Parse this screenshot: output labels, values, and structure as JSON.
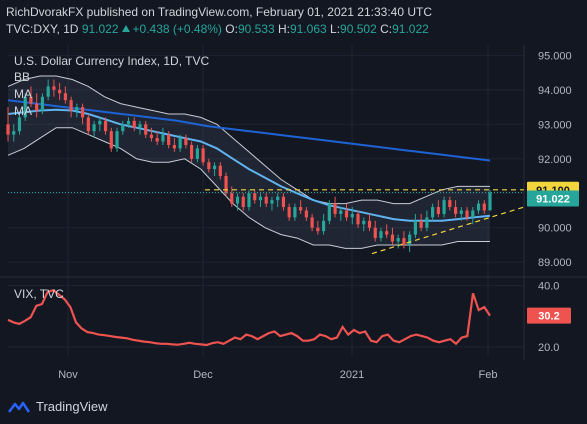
{
  "header": {
    "line1": "RichDvorakFX published on TradingView.com, February 01, 2021 21:33:40 UTC",
    "symbol": "TVC:DXY, 1D",
    "last": "91.022",
    "change": "+0.438 (+0.48%)",
    "o_label": "O:",
    "o": "90.533",
    "h_label": "H:",
    "h": "91.063",
    "l_label": "L:",
    "l": "90.502",
    "c_label": "C:",
    "c": "91.022"
  },
  "chart_title": "U.S. Dollar Currency Index, 1D, TVC",
  "legend": [
    "BB",
    "MA",
    "MA"
  ],
  "vix_title": "VIX, TVC",
  "brand": "TradingView",
  "colors": {
    "background": "#131722",
    "up": "#26a69a",
    "down": "#ef5350",
    "ma_short": "#5fb3f0",
    "ma_long": "#1e63d6",
    "bands": "#c8ccd6",
    "vix": "#ef5350",
    "resistance": "#f2d43c"
  },
  "chart_data": [
    {
      "type": "candlestick",
      "title": "U.S. Dollar Currency Index, 1D, TVC",
      "x_ticks": [
        "Nov",
        "Dec",
        "2021",
        "Feb"
      ],
      "y_ticks": [
        "95.000",
        "94.000",
        "93.000",
        "92.000",
        "91.000",
        "90.000",
        "89.000"
      ],
      "ylim": [
        88.6,
        95.3
      ],
      "last_price_label": "91.022",
      "resistance_label": "91.100",
      "resistance": 91.1,
      "support_trendline": [
        [
          0.0,
          89.25
        ],
        [
          1.0,
          90.6
        ]
      ],
      "candles": [
        [
          93.0,
          93.5,
          92.5,
          92.7
        ],
        [
          92.7,
          93.0,
          92.5,
          92.8
        ],
        [
          92.8,
          93.3,
          92.7,
          93.2
        ],
        [
          93.2,
          93.9,
          93.1,
          93.8
        ],
        [
          93.8,
          94.1,
          93.5,
          93.6
        ],
        [
          93.6,
          93.9,
          93.2,
          93.4
        ],
        [
          93.4,
          93.9,
          93.3,
          93.8
        ],
        [
          93.8,
          94.3,
          93.7,
          94.1
        ],
        [
          94.1,
          94.3,
          93.8,
          94.0
        ],
        [
          94.0,
          94.2,
          93.7,
          93.9
        ],
        [
          93.9,
          94.1,
          93.6,
          93.7
        ],
        [
          93.7,
          93.8,
          93.2,
          93.4
        ],
        [
          93.4,
          93.6,
          93.2,
          93.5
        ],
        [
          93.5,
          93.6,
          93.0,
          93.2
        ],
        [
          93.2,
          93.3,
          92.7,
          92.8
        ],
        [
          92.8,
          93.1,
          92.6,
          93.0
        ],
        [
          93.0,
          93.2,
          92.8,
          93.1
        ],
        [
          93.1,
          93.2,
          92.7,
          92.8
        ],
        [
          92.8,
          92.9,
          92.2,
          92.3
        ],
        [
          92.3,
          92.9,
          92.2,
          92.8
        ],
        [
          92.8,
          93.1,
          92.7,
          93.0
        ],
        [
          93.0,
          93.2,
          92.9,
          93.1
        ],
        [
          93.1,
          93.2,
          92.8,
          92.9
        ],
        [
          92.9,
          93.1,
          92.7,
          93.0
        ],
        [
          93.0,
          93.1,
          92.6,
          92.7
        ],
        [
          92.7,
          92.9,
          92.5,
          92.6
        ],
        [
          92.6,
          92.8,
          92.4,
          92.5
        ],
        [
          92.5,
          92.9,
          92.4,
          92.7
        ],
        [
          92.7,
          92.8,
          92.3,
          92.4
        ],
        [
          92.4,
          92.6,
          92.2,
          92.3
        ],
        [
          92.3,
          92.7,
          92.2,
          92.6
        ],
        [
          92.6,
          92.7,
          92.3,
          92.4
        ],
        [
          92.4,
          92.5,
          91.9,
          92.0
        ],
        [
          92.0,
          92.4,
          91.9,
          92.3
        ],
        [
          92.3,
          92.4,
          91.8,
          91.9
        ],
        [
          91.9,
          92.0,
          91.6,
          91.7
        ],
        [
          91.7,
          91.9,
          91.5,
          91.8
        ],
        [
          91.8,
          91.9,
          91.4,
          91.5
        ],
        [
          91.5,
          91.6,
          90.9,
          91.0
        ],
        [
          91.0,
          91.2,
          90.6,
          90.7
        ],
        [
          90.7,
          91.0,
          90.5,
          90.9
        ],
        [
          90.9,
          91.0,
          90.5,
          90.6
        ],
        [
          90.6,
          91.1,
          90.5,
          91.0
        ],
        [
          91.0,
          91.1,
          90.7,
          90.8
        ],
        [
          90.8,
          91.0,
          90.6,
          90.9
        ],
        [
          90.9,
          91.0,
          90.6,
          90.7
        ],
        [
          90.7,
          90.9,
          90.5,
          90.8
        ],
        [
          90.8,
          91.0,
          90.6,
          90.9
        ],
        [
          90.9,
          91.0,
          90.5,
          90.6
        ],
        [
          90.6,
          90.7,
          90.2,
          90.3
        ],
        [
          90.3,
          90.7,
          90.2,
          90.6
        ],
        [
          90.6,
          90.8,
          90.4,
          90.5
        ],
        [
          90.5,
          90.6,
          90.2,
          90.3
        ],
        [
          90.3,
          90.4,
          89.9,
          90.0
        ],
        [
          90.0,
          90.2,
          89.8,
          89.9
        ],
        [
          89.9,
          90.4,
          89.8,
          90.2
        ],
        [
          90.2,
          90.8,
          90.1,
          90.7
        ],
        [
          90.7,
          90.9,
          90.3,
          90.4
        ],
        [
          90.4,
          90.6,
          90.2,
          90.5
        ],
        [
          90.5,
          90.7,
          90.2,
          90.3
        ],
        [
          90.3,
          90.6,
          90.1,
          90.4
        ],
        [
          90.4,
          90.5,
          90.0,
          90.1
        ],
        [
          90.1,
          90.3,
          89.9,
          90.2
        ],
        [
          90.2,
          90.4,
          89.9,
          90.0
        ],
        [
          90.0,
          90.2,
          89.6,
          89.7
        ],
        [
          89.7,
          90.0,
          89.6,
          89.9
        ],
        [
          89.9,
          90.1,
          89.7,
          89.8
        ],
        [
          89.8,
          90.0,
          89.5,
          89.6
        ],
        [
          89.6,
          89.8,
          89.4,
          89.7
        ],
        [
          89.7,
          89.9,
          89.4,
          89.5
        ],
        [
          89.5,
          89.9,
          89.3,
          89.8
        ],
        [
          89.8,
          90.4,
          89.7,
          90.2
        ],
        [
          90.2,
          90.4,
          89.9,
          90.0
        ],
        [
          90.0,
          90.5,
          89.9,
          90.3
        ],
        [
          90.3,
          90.7,
          90.2,
          90.6
        ],
        [
          90.6,
          90.8,
          90.3,
          90.4
        ],
        [
          90.4,
          90.9,
          90.3,
          90.8
        ],
        [
          90.8,
          90.9,
          90.5,
          90.6
        ],
        [
          90.6,
          90.8,
          90.3,
          90.4
        ],
        [
          90.4,
          90.6,
          90.2,
          90.5
        ],
        [
          90.5,
          90.6,
          90.2,
          90.3
        ],
        [
          90.3,
          90.6,
          90.1,
          90.5
        ],
        [
          90.5,
          90.8,
          90.4,
          90.7
        ],
        [
          90.7,
          90.8,
          90.4,
          90.5
        ],
        [
          90.5,
          91.1,
          90.5,
          91.02
        ]
      ],
      "bb_upper": [
        94.1,
        94.3,
        94.4,
        94.4,
        94.3,
        94.1,
        93.8,
        93.6,
        93.5,
        93.4,
        93.3,
        93.3,
        93.2,
        93.0,
        92.6,
        92.2,
        91.8,
        91.4,
        91.1,
        90.8,
        90.7,
        90.7,
        90.8,
        90.8,
        90.7,
        90.7,
        90.9,
        91.1,
        91.2,
        91.2,
        91.2
      ],
      "bb_lower": [
        92.1,
        92.3,
        92.6,
        92.9,
        92.9,
        92.7,
        92.5,
        92.3,
        92.0,
        91.9,
        91.9,
        92.0,
        91.7,
        91.2,
        90.7,
        90.3,
        90.0,
        89.8,
        89.7,
        89.5,
        89.5,
        89.4,
        89.4,
        89.5,
        89.5,
        89.5,
        89.5,
        89.5,
        89.6,
        89.6,
        89.6
      ],
      "ma_short": [
        93.3,
        93.35,
        93.4,
        93.42,
        93.4,
        93.3,
        93.15,
        93.0,
        92.9,
        92.8,
        92.7,
        92.6,
        92.5,
        92.3,
        92.0,
        91.7,
        91.45,
        91.2,
        91.0,
        90.8,
        90.65,
        90.55,
        90.45,
        90.35,
        90.25,
        90.2,
        90.2,
        90.2,
        90.25,
        90.3,
        90.35
      ],
      "ma_long": [
        93.7,
        93.6,
        93.5,
        93.4,
        93.3,
        93.2,
        93.1,
        92.95,
        92.85,
        92.75,
        92.65,
        92.55,
        92.45,
        92.35,
        92.25,
        92.15,
        92.05,
        91.95
      ]
    },
    {
      "type": "line",
      "title": "VIX, TVC",
      "x_ticks": [
        "Nov",
        "Dec",
        "2021",
        "Feb"
      ],
      "y_ticks": [
        "40.0",
        "20.0"
      ],
      "ylim": [
        17.0,
        42.5
      ],
      "last_value_label": "30.2",
      "values": [
        28.8,
        28.0,
        27.5,
        28.5,
        29.7,
        33.4,
        34.0,
        38.0,
        38.5,
        37.0,
        35.5,
        33.0,
        28.0,
        26.0,
        24.8,
        24.5,
        24.0,
        23.8,
        23.5,
        23.2,
        23.0,
        22.8,
        22.3,
        22.0,
        21.7,
        21.5,
        21.2,
        21.0,
        21.0,
        20.8,
        20.7,
        21.0,
        21.3,
        21.0,
        20.8,
        20.6,
        21.2,
        21.5,
        21.0,
        22.0,
        23.0,
        22.5,
        24.0,
        23.5,
        22.5,
        23.5,
        24.5,
        25.0,
        23.5,
        24.0,
        24.5,
        23.5,
        22.0,
        22.0,
        22.5,
        24.0,
        23.5,
        22.5,
        23.0,
        26.5,
        24.0,
        25.5,
        24.5,
        25.0,
        22.0,
        21.5,
        23.5,
        24.0,
        22.0,
        21.5,
        22.5,
        23.5,
        24.0,
        23.5,
        23.0,
        22.0,
        21.5,
        22.0,
        22.5,
        21.0,
        23.0,
        23.5,
        37.5,
        32.0,
        33.0,
        30.2
      ]
    }
  ]
}
